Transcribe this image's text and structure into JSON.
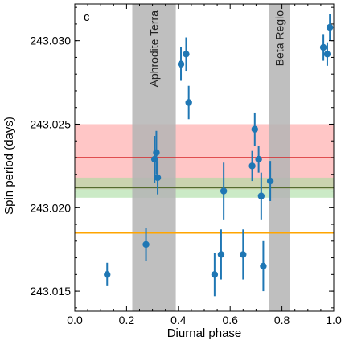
{
  "chart_data": {
    "type": "scatter",
    "panel_label": "c",
    "xlabel": "Diurnal phase",
    "ylabel": "Spin period (days)",
    "xlim": [
      0.0,
      1.0
    ],
    "ylim": [
      243.0138,
      243.0322
    ],
    "x_ticks": [
      "0.0",
      "0.2",
      "0.4",
      "0.6",
      "0.8",
      "1.0"
    ],
    "x_tick_values": [
      0.0,
      0.2,
      0.4,
      0.6,
      0.8,
      1.0
    ],
    "y_ticks": [
      "243.015",
      "243.020",
      "243.025",
      "243.030"
    ],
    "y_tick_values": [
      243.015,
      243.02,
      243.025,
      243.03
    ],
    "regions": [
      {
        "label": "Aphrodite Terra",
        "x0": 0.222,
        "x1": 0.39,
        "color": "#b4b4b4"
      },
      {
        "label": "Beta Regio",
        "x0": 0.75,
        "x1": 0.83,
        "color": "#b4b4b4"
      }
    ],
    "bands": [
      {
        "center": 243.023,
        "lower": 243.0211,
        "upper": 243.025,
        "line_color": "#d62728",
        "fill_color": "#ffa0a0"
      },
      {
        "center": 243.0212,
        "lower": 243.0206,
        "upper": 243.0218,
        "line_color": "#556b2f",
        "fill_color": "#a8dca0"
      },
      {
        "center": 243.0185,
        "lower": 243.0185,
        "upper": 243.0185,
        "line_color": "#ffa500",
        "fill_color": "#ffa500"
      }
    ],
    "points": [
      {
        "x": 0.125,
        "y": 243.016,
        "err": 0.0007
      },
      {
        "x": 0.275,
        "y": 243.0178,
        "err": 0.001
      },
      {
        "x": 0.308,
        "y": 243.0229,
        "err": 0.0014
      },
      {
        "x": 0.315,
        "y": 243.0233,
        "err": 0.0013
      },
      {
        "x": 0.32,
        "y": 243.0218,
        "err": 0.001
      },
      {
        "x": 0.41,
        "y": 243.0286,
        "err": 0.001
      },
      {
        "x": 0.43,
        "y": 243.0292,
        "err": 0.001
      },
      {
        "x": 0.44,
        "y": 243.0263,
        "err": 0.001
      },
      {
        "x": 0.54,
        "y": 243.016,
        "err": 0.0013
      },
      {
        "x": 0.565,
        "y": 243.0172,
        "err": 0.0015
      },
      {
        "x": 0.575,
        "y": 243.021,
        "err": 0.0017
      },
      {
        "x": 0.65,
        "y": 243.0172,
        "err": 0.0015
      },
      {
        "x": 0.685,
        "y": 243.0225,
        "err": 0.0009
      },
      {
        "x": 0.695,
        "y": 243.0247,
        "err": 0.001
      },
      {
        "x": 0.71,
        "y": 243.0229,
        "err": 0.0008
      },
      {
        "x": 0.72,
        "y": 243.0207,
        "err": 0.0014
      },
      {
        "x": 0.728,
        "y": 243.0165,
        "err": 0.0015
      },
      {
        "x": 0.755,
        "y": 243.0216,
        "err": 0.0012
      },
      {
        "x": 0.96,
        "y": 243.0296,
        "err": 0.0008
      },
      {
        "x": 0.975,
        "y": 243.0292,
        "err": 0.0007
      },
      {
        "x": 0.985,
        "y": 243.0308,
        "err": 0.0008
      }
    ],
    "point_color": "#1f77b4",
    "grid": false,
    "legend": "none"
  }
}
